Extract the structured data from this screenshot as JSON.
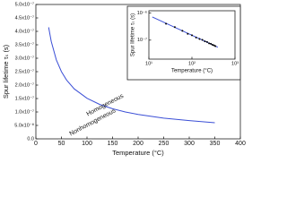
{
  "chart_data": [
    {
      "type": "line",
      "xlabel": "Temperature (°C)",
      "ylabel": "Spur lifetime τₛ (s)",
      "annotations": [
        "Homogeneous",
        "Nonhomogeneous"
      ],
      "x": [
        25,
        30,
        40,
        50,
        60,
        75,
        100,
        125,
        150,
        175,
        200,
        250,
        300,
        350
      ],
      "series": [
        {
          "color": "#3b4fd6",
          "values": [
            4.15e-07,
            3.63e-07,
            2.94e-07,
            2.5e-07,
            2.19e-07,
            1.86e-07,
            1.51e-07,
            1.28e-07,
            1.12e-07,
            1e-07,
            9.1e-08,
            7.7e-08,
            6.8e-08,
            6e-08
          ]
        }
      ],
      "xlim": [
        0,
        400
      ],
      "xticks": [
        0,
        50,
        100,
        150,
        200,
        250,
        300,
        350,
        400
      ],
      "ylim": [
        0,
        5e-07
      ],
      "yticks": [
        {
          "value": 0,
          "label": "0.0"
        },
        {
          "value": 5e-08,
          "label": "5.0x10⁻⁸"
        },
        {
          "value": 1e-07,
          "label": "1.0x10⁻⁷"
        },
        {
          "value": 1.5e-07,
          "label": "1.5x10⁻⁷"
        },
        {
          "value": 2e-07,
          "label": "2.0x10⁻⁷"
        },
        {
          "value": 2.5e-07,
          "label": "2.5x10⁻⁷"
        },
        {
          "value": 3e-07,
          "label": "3.0x10⁻⁷"
        },
        {
          "value": 3.5e-07,
          "label": "3.5x10⁻⁷"
        },
        {
          "value": 4e-07,
          "label": "4.0x10⁻⁷"
        },
        {
          "value": 4.5e-07,
          "label": "4.5x10⁻⁷"
        },
        {
          "value": 5e-07,
          "label": "5.0x10⁻⁷"
        }
      ]
    },
    {
      "type": "line",
      "xlog": true,
      "ylog": true,
      "xlabel": "Temperature (°C)",
      "ylabel": "Spur lifetime τₛ (s)",
      "x": [
        12,
        400
      ],
      "series": [
        {
          "color": "#3b4fd6",
          "values": [
            7.1e-07,
            5.5e-08
          ]
        }
      ],
      "points": {
        "color": "#000000",
        "x": [
          25,
          40,
          60,
          80,
          100,
          125,
          150,
          175,
          200,
          225,
          250,
          275,
          300,
          325,
          350
        ],
        "values": [
          4e-07,
          3e-07,
          2.2e-07,
          1.7e-07,
          1.5e-07,
          1.25e-07,
          1.1e-07,
          1.02e-07,
          9e-08,
          8.5e-08,
          7.6e-08,
          7.3e-08,
          6.7e-08,
          6.4e-08,
          6e-08
        ]
      },
      "xlim": [
        10,
        1000
      ],
      "xticks": [
        {
          "value": 10,
          "label": "10¹"
        },
        {
          "value": 100,
          "label": "10²"
        },
        {
          "value": 1000,
          "label": "10³"
        }
      ],
      "ylim": [
        2e-08,
        1.2e-06
      ],
      "yticks": [
        {
          "value": 1e-07,
          "label": "10⁻⁷"
        },
        {
          "value": 1e-06,
          "label": "10⁻⁶"
        }
      ]
    }
  ]
}
